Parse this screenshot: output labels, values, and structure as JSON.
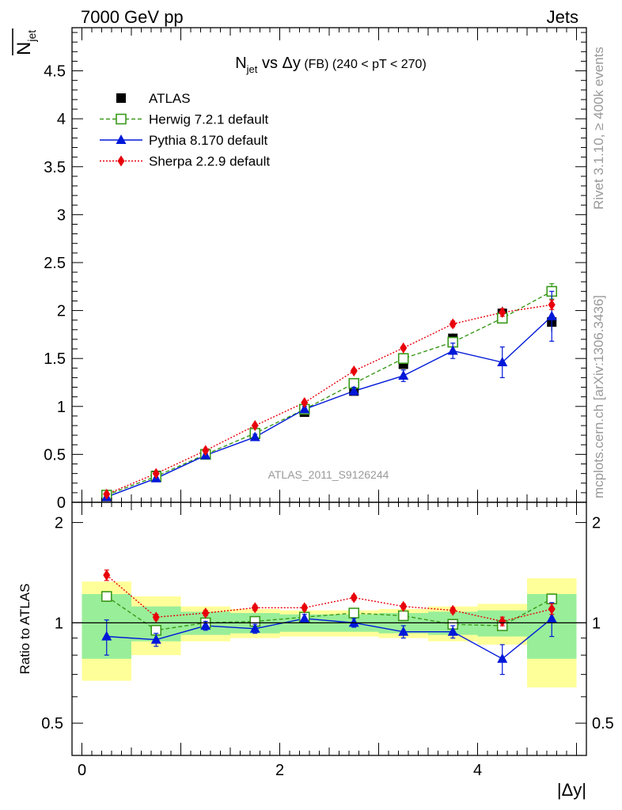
{
  "header": {
    "energy": "7000 GeV pp",
    "category": "Jets"
  },
  "side_text": {
    "rivet": "Rivet 3.1.10, ≥ 400k events",
    "mcplots": "mcplots.cern.ch [arXiv:1306.3436]"
  },
  "watermark": "ATLAS_2011_S9126244",
  "chart_data": {
    "type": "scatter",
    "title": "N_jet vs Δy (FB) (240 < pT < 270)",
    "title_parts": {
      "n": "N",
      "sub": "jet",
      "vs": " vs ",
      "dy": "Δy",
      "fb": " (FB) ",
      "range": "(240 < pT < 270)"
    },
    "ylabel_main": "N̄_jet",
    "ylabel_main_parts": {
      "n": "N",
      "sub": "jet"
    },
    "ylabel_ratio": "Ratio to ATLAS",
    "xlabel": "|Δy|",
    "xlim": [
      -0.1,
      5.1
    ],
    "ylim_main": [
      0,
      4.95
    ],
    "ylim_ratio": [
      0.4,
      2.3
    ],
    "x_ticks": [
      "0",
      "2",
      "4"
    ],
    "y_ticks_main": [
      "0",
      "0.5",
      "1",
      "1.5",
      "2",
      "2.5",
      "3",
      "3.5",
      "4",
      "4.5"
    ],
    "y_ticks_ratio": [
      "0.5",
      "1",
      "2"
    ],
    "x_bins": [
      [
        0,
        0.5
      ],
      [
        0.5,
        1
      ],
      [
        1,
        1.5
      ],
      [
        1.5,
        2
      ],
      [
        2,
        2.5
      ],
      [
        2.5,
        3
      ],
      [
        3,
        3.5
      ],
      [
        3.5,
        4
      ],
      [
        4,
        4.5
      ],
      [
        4.5,
        5
      ]
    ],
    "x": [
      0.25,
      0.75,
      1.25,
      1.75,
      2.25,
      2.75,
      3.25,
      3.75,
      4.25,
      4.75
    ],
    "legend": {
      "position": "top-left"
    },
    "series": [
      {
        "name": "ATLAS",
        "color": "#000000",
        "marker": "filled-square",
        "values": [
          0.06,
          0.28,
          0.5,
          0.71,
          0.94,
          1.16,
          1.44,
          1.71,
          1.97,
          1.88
        ],
        "errors": [
          0.01,
          0.01,
          0.01,
          0.02,
          0.02,
          0.03,
          0.04,
          0.05,
          0.07,
          0.1
        ],
        "ratio_band_inner": [
          0.22,
          0.12,
          0.08,
          0.07,
          0.06,
          0.06,
          0.07,
          0.08,
          0.09,
          0.22
        ],
        "ratio_band_outer": [
          0.33,
          0.2,
          0.12,
          0.1,
          0.09,
          0.09,
          0.1,
          0.12,
          0.14,
          0.36
        ]
      },
      {
        "name": "Herwig 7.2.1 default",
        "color": "#3a9a1a",
        "marker": "open-square",
        "line": "dashed",
        "values": [
          0.075,
          0.27,
          0.5,
          0.72,
          0.97,
          1.24,
          1.5,
          1.67,
          1.92,
          2.2
        ],
        "errors": [
          0.003,
          0.005,
          0.01,
          0.01,
          0.015,
          0.02,
          0.03,
          0.04,
          0.05,
          0.08
        ],
        "ratios": [
          1.2,
          0.95,
          1.0,
          1.01,
          1.04,
          1.07,
          1.05,
          0.99,
          0.98,
          1.18
        ],
        "ratio_errors": [
          0.04,
          0.02,
          0.02,
          0.02,
          0.02,
          0.02,
          0.02,
          0.02,
          0.03,
          0.04
        ]
      },
      {
        "name": "Pythia 8.170 default",
        "color": "#0018d8",
        "marker": "filled-triangle",
        "line": "solid",
        "values": [
          0.055,
          0.25,
          0.49,
          0.68,
          0.97,
          1.16,
          1.32,
          1.58,
          1.46,
          1.94
        ],
        "errors": [
          0.01,
          0.01,
          0.02,
          0.03,
          0.03,
          0.04,
          0.06,
          0.08,
          0.16,
          0.26
        ],
        "ratios": [
          0.91,
          0.89,
          0.98,
          0.96,
          1.03,
          1.0,
          0.94,
          0.94,
          0.78,
          1.03
        ],
        "ratio_errors": [
          0.11,
          0.04,
          0.03,
          0.03,
          0.03,
          0.03,
          0.04,
          0.04,
          0.08,
          0.12
        ]
      },
      {
        "name": "Sherpa 2.2.9 default",
        "color": "#e8000b",
        "marker": "filled-diamond",
        "line": "dotted",
        "values": [
          0.085,
          0.3,
          0.54,
          0.8,
          1.04,
          1.37,
          1.61,
          1.86,
          1.98,
          2.06
        ],
        "errors": [
          0.003,
          0.005,
          0.01,
          0.01,
          0.015,
          0.02,
          0.02,
          0.03,
          0.04,
          0.05
        ],
        "ratios": [
          1.39,
          1.04,
          1.07,
          1.11,
          1.11,
          1.19,
          1.12,
          1.09,
          1.01,
          1.1
        ],
        "ratio_errors": [
          0.05,
          0.02,
          0.02,
          0.02,
          0.02,
          0.02,
          0.02,
          0.02,
          0.03,
          0.04
        ]
      }
    ]
  }
}
